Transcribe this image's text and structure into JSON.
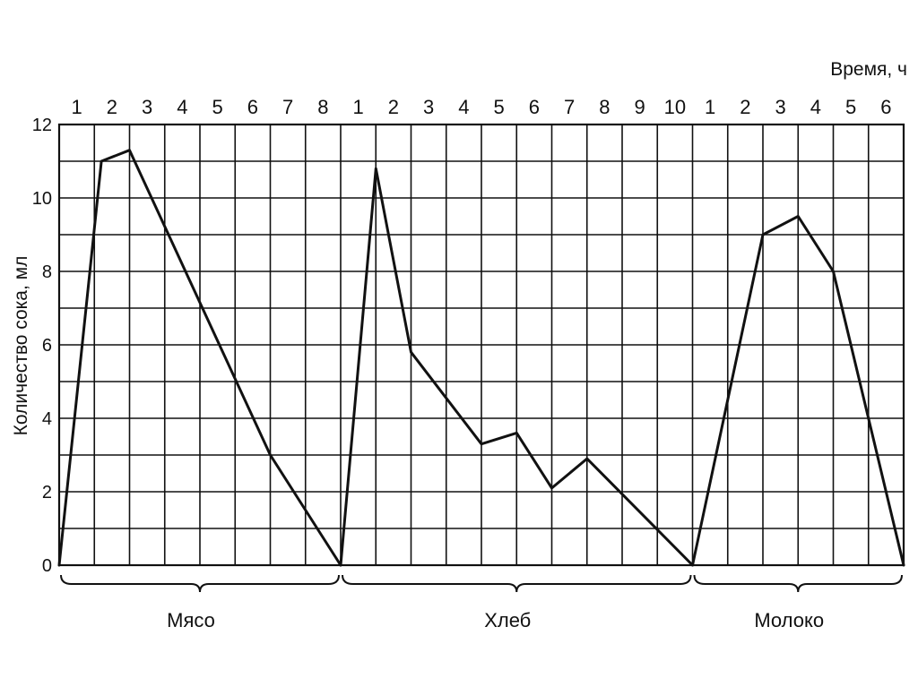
{
  "chart_data": {
    "type": "line",
    "xlabel": "Время, ч",
    "ylabel": "Количество сока, мл",
    "ylim": [
      0,
      12
    ],
    "yticks": [
      0,
      2,
      4,
      6,
      8,
      10,
      12
    ],
    "grid": true,
    "segments": [
      {
        "name": "Мясо",
        "tick_labels": [
          "1",
          "2",
          "3",
          "4",
          "5",
          "6",
          "7",
          "8"
        ],
        "points": [
          [
            0,
            0
          ],
          [
            1.2,
            11.0
          ],
          [
            2.0,
            11.3
          ],
          [
            6.0,
            3.0
          ],
          [
            8.0,
            0
          ]
        ]
      },
      {
        "name": "Хлеб",
        "tick_labels": [
          "1",
          "2",
          "3",
          "4",
          "5",
          "6",
          "7",
          "8",
          "9",
          "10"
        ],
        "points": [
          [
            0,
            0
          ],
          [
            1.0,
            10.8
          ],
          [
            2.0,
            5.8
          ],
          [
            4.0,
            3.3
          ],
          [
            5.0,
            3.6
          ],
          [
            6.0,
            2.1
          ],
          [
            7.0,
            2.9
          ],
          [
            10.0,
            0
          ]
        ]
      },
      {
        "name": "Молоко",
        "tick_labels": [
          "1",
          "2",
          "3",
          "4",
          "5",
          "6"
        ],
        "points": [
          [
            0,
            0
          ],
          [
            2.0,
            9.0
          ],
          [
            3.0,
            9.5
          ],
          [
            4.0,
            8.0
          ],
          [
            6.0,
            0
          ]
        ]
      }
    ]
  }
}
